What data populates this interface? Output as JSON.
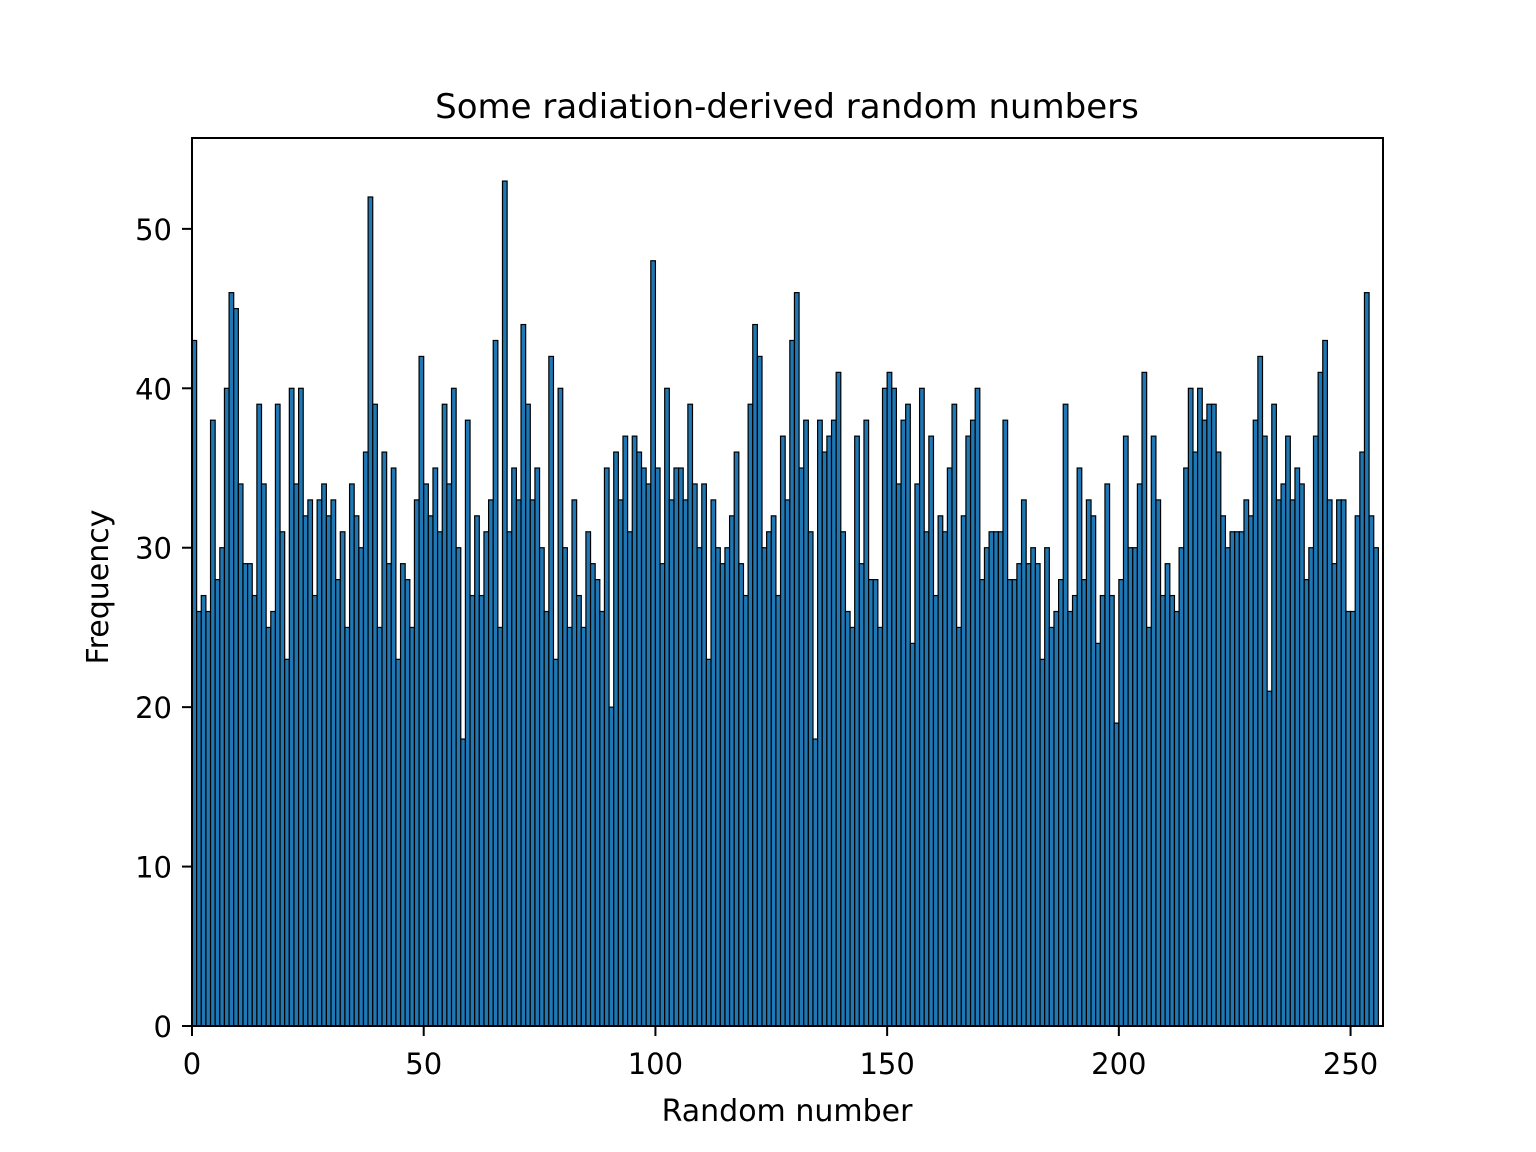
{
  "chart_data": {
    "type": "bar",
    "title": "Some radiation-derived random numbers",
    "xlabel": "Random number",
    "ylabel": "Frequency",
    "xlim": [
      0,
      257
    ],
    "ylim": [
      0,
      55.7
    ],
    "xticks": [
      0,
      50,
      100,
      150,
      200,
      250
    ],
    "yticks": [
      0,
      10,
      20,
      30,
      40,
      50
    ],
    "grid": false,
    "bar_color": "#1f77b4",
    "edge_color": "#000000",
    "bin_width": 1,
    "x_start": 0,
    "values": [
      43,
      26,
      27,
      26,
      38,
      28,
      30,
      40,
      46,
      45,
      34,
      29,
      29,
      27,
      39,
      34,
      25,
      26,
      39,
      31,
      23,
      40,
      34,
      40,
      32,
      33,
      27,
      33,
      34,
      32,
      33,
      28,
      31,
      25,
      34,
      32,
      30,
      36,
      52,
      39,
      25,
      36,
      29,
      35,
      23,
      29,
      28,
      25,
      33,
      42,
      34,
      32,
      35,
      31,
      39,
      34,
      40,
      30,
      18,
      38,
      27,
      32,
      27,
      31,
      33,
      43,
      25,
      53,
      31,
      35,
      33,
      44,
      39,
      33,
      35,
      30,
      26,
      42,
      23,
      40,
      30,
      25,
      33,
      27,
      25,
      31,
      29,
      28,
      26,
      35,
      20,
      36,
      33,
      37,
      31,
      37,
      36,
      35,
      34,
      48,
      35,
      29,
      40,
      33,
      35,
      35,
      33,
      39,
      34,
      30,
      34,
      23,
      33,
      30,
      29,
      30,
      32,
      36,
      29,
      27,
      39,
      44,
      42,
      30,
      31,
      32,
      27,
      37,
      33,
      43,
      46,
      35,
      38,
      31,
      18,
      38,
      36,
      37,
      38,
      41,
      31,
      26,
      25,
      37,
      29,
      38,
      28,
      28,
      25,
      40,
      41,
      40,
      34,
      38,
      39,
      24,
      34,
      40,
      31,
      37,
      27,
      32,
      31,
      35,
      39,
      25,
      32,
      37,
      38,
      40,
      28,
      30,
      31,
      31,
      31,
      38,
      28,
      28,
      29,
      33,
      29,
      30,
      29,
      23,
      30,
      25,
      26,
      28,
      39,
      26,
      27,
      35,
      28,
      33,
      32,
      24,
      27,
      34,
      27,
      19,
      28,
      37,
      30,
      30,
      34,
      41,
      25,
      37,
      33,
      27,
      29,
      27,
      26,
      30,
      35,
      40,
      36,
      40,
      38,
      39,
      39,
      36,
      32,
      30,
      31,
      31,
      31,
      33,
      32,
      38,
      42,
      37,
      21,
      39,
      33,
      34,
      37,
      33,
      35,
      34,
      28,
      30,
      37,
      41,
      43,
      33,
      29,
      33,
      33,
      26,
      26,
      32,
      36,
      46,
      32,
      30
    ]
  }
}
